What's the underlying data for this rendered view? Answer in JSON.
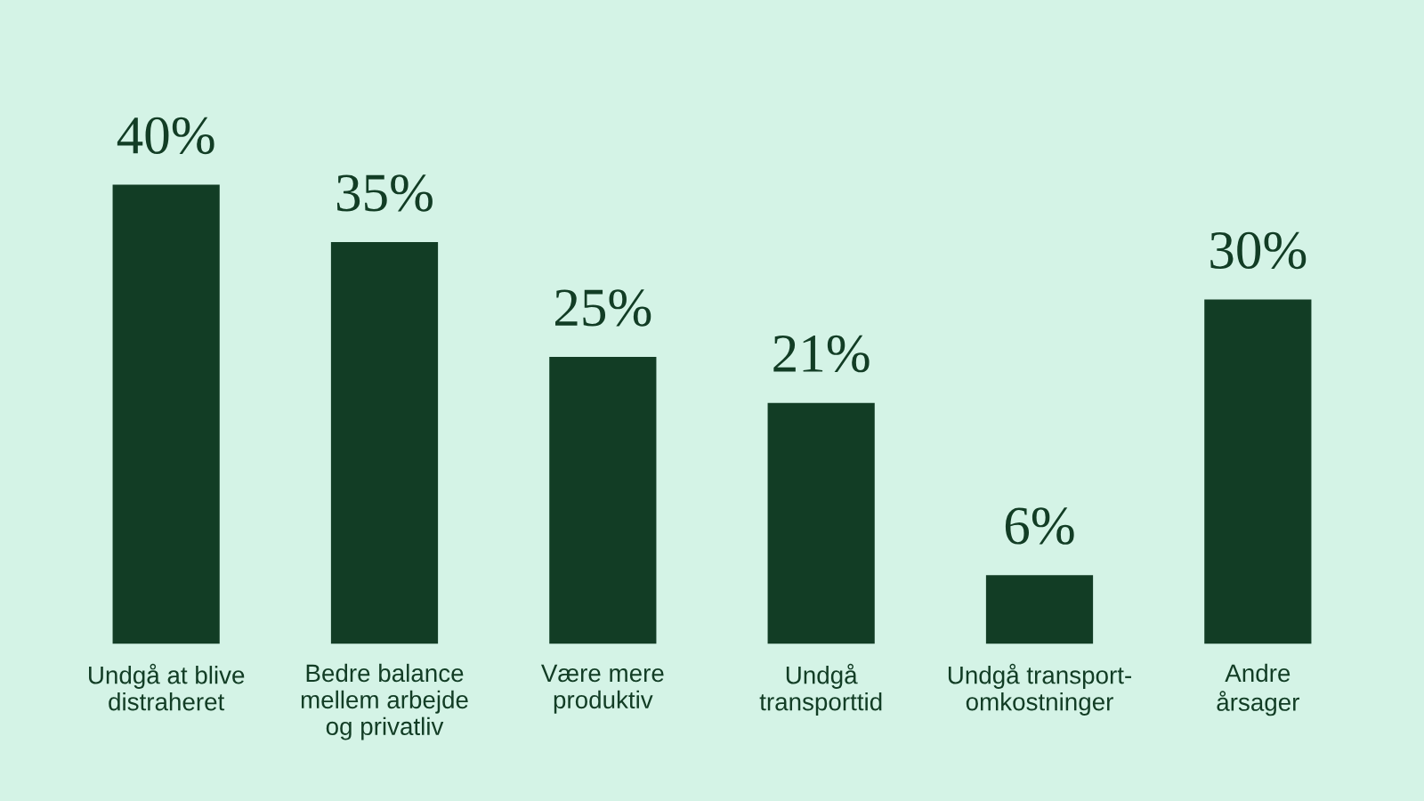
{
  "chart_data": {
    "type": "bar",
    "categories": [
      "Undgå at blive\ndistraheret",
      "Bedre balance\nmellem arbejde\nog privatliv",
      "Være mere\nproduktiv",
      "Undgå\ntransporttid",
      "Undgå transport-\nomkostninger",
      "Andre\nårsager"
    ],
    "values": [
      40,
      35,
      25,
      21,
      6,
      30
    ],
    "value_labels": [
      "40%",
      "35%",
      "25%",
      "21%",
      "6%",
      "30%"
    ],
    "color": "#123d25",
    "tick_labels": "x",
    "grid": false,
    "legend": false
  }
}
